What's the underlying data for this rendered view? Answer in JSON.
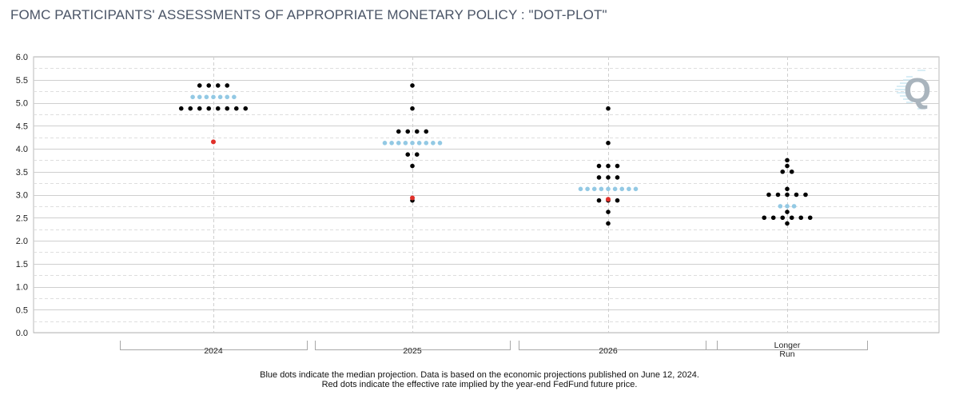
{
  "title": "FOMC PARTICIPANTS' ASSESSMENTS OF APPROPRIATE MONETARY POLICY : \"DOT-PLOT\"",
  "footnotes": [
    "Blue dots indicate the median projection. Data is based on the economic projections published on June 12, 2024.",
    "Red dots indicate the effective rate implied by the year-end FedFund future price."
  ],
  "logo_letter": "Q",
  "colors": {
    "participant_dot": "#000000",
    "median_dot": "#93c9e4",
    "market_dot": "#e0302a",
    "grid": "#c9c9c9",
    "axis_text": "#222222",
    "title": "#4a5466"
  },
  "chart_data": {
    "type": "scatter",
    "title": "FOMC PARTICIPANTS' ASSESSMENTS OF APPROPRIATE MONETARY POLICY : \"DOT-PLOT\"",
    "xlabel": "",
    "ylabel": "",
    "ylim": [
      0,
      6
    ],
    "yticks": [
      0.0,
      0.5,
      1.0,
      1.5,
      2.0,
      2.5,
      3.0,
      3.5,
      4.0,
      4.5,
      5.0,
      5.5,
      6.0
    ],
    "ytick_labels": [
      "0.0",
      "0.5",
      "1.0",
      "1.5",
      "2.0",
      "2.5",
      "3.0",
      "3.5",
      "4.0",
      "4.5",
      "5.0",
      "5.5",
      "6.0"
    ],
    "grid": true,
    "categories": [
      {
        "label": "2024",
        "label_lines": [
          "2024"
        ],
        "participants": [
          {
            "rate": 5.375,
            "count": 4
          },
          {
            "rate": 4.875,
            "count": 8
          }
        ],
        "median": {
          "rate": 5.125,
          "count": 7
        },
        "market_implied": 4.15
      },
      {
        "label": "2025",
        "label_lines": [
          "2025"
        ],
        "participants": [
          {
            "rate": 5.375,
            "count": 1
          },
          {
            "rate": 4.875,
            "count": 1
          },
          {
            "rate": 4.375,
            "count": 4
          },
          {
            "rate": 3.875,
            "count": 2
          },
          {
            "rate": 3.625,
            "count": 1
          },
          {
            "rate": 2.875,
            "count": 1
          }
        ],
        "median": {
          "rate": 4.125,
          "count": 9
        },
        "market_implied": 2.93
      },
      {
        "label": "2026",
        "label_lines": [
          "2026"
        ],
        "participants": [
          {
            "rate": 4.875,
            "count": 1
          },
          {
            "rate": 4.125,
            "count": 1
          },
          {
            "rate": 3.625,
            "count": 3
          },
          {
            "rate": 3.375,
            "count": 3
          },
          {
            "rate": 2.875,
            "count": 3
          },
          {
            "rate": 2.625,
            "count": 1
          },
          {
            "rate": 2.375,
            "count": 1
          }
        ],
        "median": {
          "rate": 3.125,
          "count": 9
        },
        "market_implied": 2.9
      },
      {
        "label": "Longer Run",
        "label_lines": [
          "Longer",
          "Run"
        ],
        "participants": [
          {
            "rate": 3.75,
            "count": 1
          },
          {
            "rate": 3.625,
            "count": 1
          },
          {
            "rate": 3.5,
            "count": 2
          },
          {
            "rate": 3.125,
            "count": 1
          },
          {
            "rate": 3.0,
            "count": 5
          },
          {
            "rate": 2.625,
            "count": 1
          },
          {
            "rate": 2.5,
            "count": 6
          },
          {
            "rate": 2.375,
            "count": 1
          }
        ],
        "median": {
          "rate": 2.75,
          "count": 3
        },
        "market_implied": null
      }
    ]
  }
}
